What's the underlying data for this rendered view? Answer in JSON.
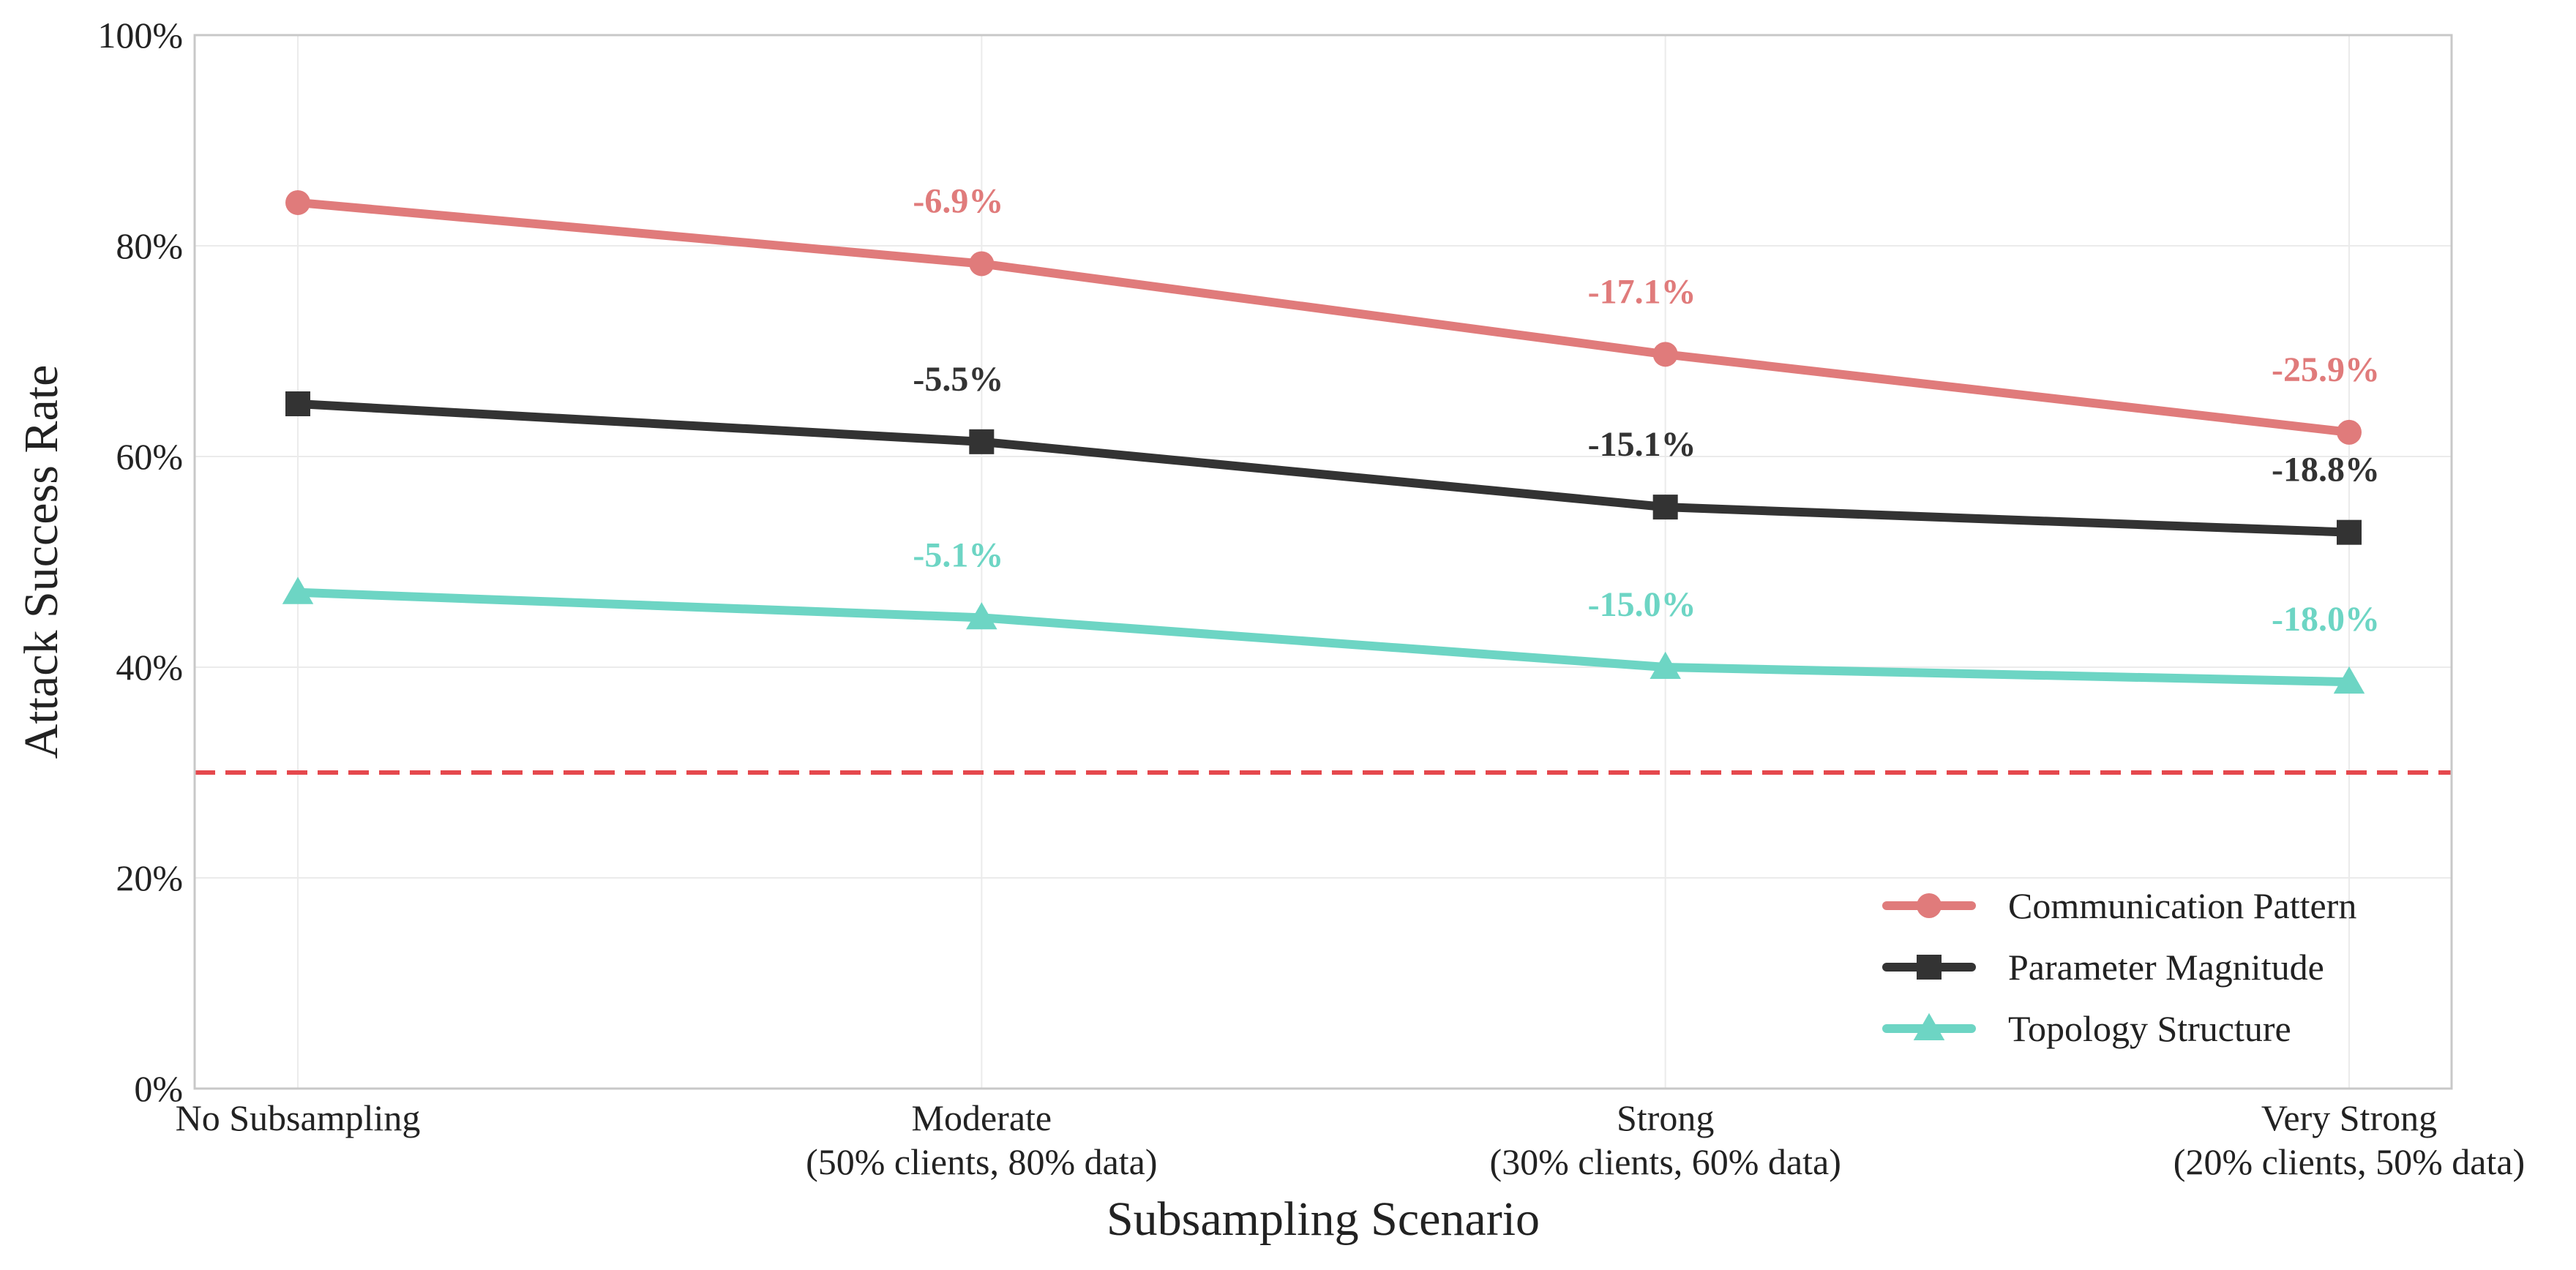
{
  "chart_data": {
    "type": "line",
    "title": "",
    "xlabel": "Subsampling Scenario",
    "ylabel": "Attack Success Rate",
    "categories": [
      [
        "No Subsampling"
      ],
      [
        "Moderate",
        "(50% clients, 80% data)"
      ],
      [
        "Strong",
        "(30% clients, 60% data)"
      ],
      [
        "Very Strong",
        "(20% clients, 50% data)"
      ]
    ],
    "ylim": [
      0,
      100
    ],
    "yticks": [
      0,
      20,
      40,
      60,
      80,
      100
    ],
    "ytick_labels": [
      "0%",
      "20%",
      "40%",
      "60%",
      "80%",
      "100%"
    ],
    "grid": true,
    "legend_position": "bottom-right",
    "reference_line": {
      "y": 30,
      "style": "dashed",
      "color": "#e5484d"
    },
    "series": [
      {
        "name": "Communication Pattern",
        "values": [
          84.1,
          78.3,
          69.7,
          62.3
        ],
        "color": "#e07b7b",
        "marker": "circle",
        "labels": [
          "",
          "-6.9%",
          "-17.1%",
          "-25.9%"
        ]
      },
      {
        "name": "Parameter Magnitude",
        "values": [
          65.0,
          61.4,
          55.2,
          52.8
        ],
        "color": "#333333",
        "marker": "square",
        "labels": [
          "",
          "-5.5%",
          "-15.1%",
          "-18.8%"
        ]
      },
      {
        "name": "Topology Structure",
        "values": [
          47.1,
          44.7,
          40.0,
          38.6
        ],
        "color": "#6dd5c4",
        "marker": "triangle",
        "labels": [
          "",
          "-5.1%",
          "-15.0%",
          "-18.0%"
        ]
      }
    ]
  }
}
